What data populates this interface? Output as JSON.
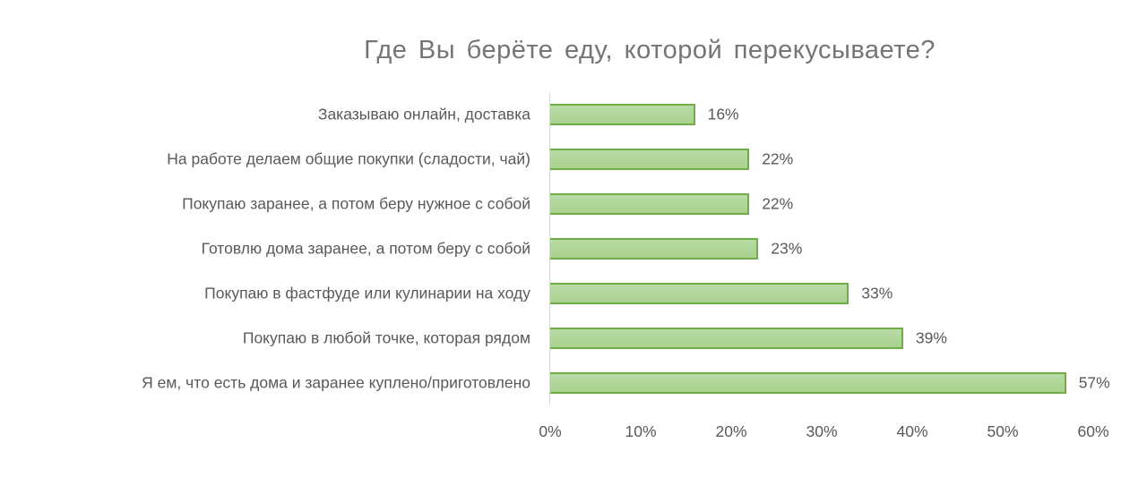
{
  "chart_data": {
    "type": "bar",
    "orientation": "horizontal",
    "title": "Где Вы берёте еду, которой перекусываете?",
    "xlabel": "",
    "ylabel": "",
    "categories": [
      "Заказываю онлайн, доставка",
      "На работе делаем общие покупки (сладости, чай)",
      "Покупаю заранее, а потом беру нужное с собой",
      "Готовлю дома заранее, а потом беру с собой",
      "Покупаю в фастфуде или кулинарии на ходу",
      "Покупаю в любой точке, которая рядом",
      "Я ем, что есть дома и заранее куплено/приготовлено"
    ],
    "values": [
      16,
      22,
      22,
      23,
      33,
      39,
      57
    ],
    "value_labels": [
      "16%",
      "22%",
      "22%",
      "23%",
      "33%",
      "39%",
      "57%"
    ],
    "xlim": [
      0,
      60
    ],
    "x_ticks": [
      "0%",
      "10%",
      "20%",
      "30%",
      "40%",
      "50%",
      "60%"
    ],
    "grid": false,
    "legend": null,
    "bar_fill_color": "#a9d18e",
    "bar_border_color": "#70ad47"
  },
  "title": "Где Вы берёте еду, которой перекусываете?",
  "rows": [
    {
      "label": "Заказываю онлайн, доставка",
      "value_label": "16%"
    },
    {
      "label": "На работе делаем общие покупки (сладости, чай)",
      "value_label": "22%"
    },
    {
      "label": "Покупаю заранее, а потом беру нужное с собой",
      "value_label": "22%"
    },
    {
      "label": "Готовлю дома заранее, а потом беру с собой",
      "value_label": "23%"
    },
    {
      "label": "Покупаю в фастфуде или кулинарии на ходу",
      "value_label": "33%"
    },
    {
      "label": "Покупаю в любой точке, которая рядом",
      "value_label": "39%"
    },
    {
      "label": "Я ем, что есть дома и заранее куплено/приготовлено",
      "value_label": "57%"
    }
  ],
  "ticks": [
    "0%",
    "10%",
    "20%",
    "30%",
    "40%",
    "50%",
    "60%"
  ]
}
